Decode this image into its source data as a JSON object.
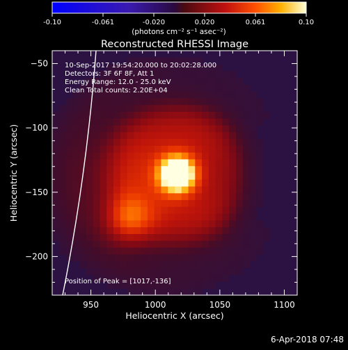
{
  "colorbar": {
    "ticks": [
      "-0.10",
      "-0.061",
      "-0.020",
      "0.020",
      "0.061",
      "0.10"
    ],
    "unit_label": "(photons cm⁻² s⁻¹ asec⁻²)",
    "range": [
      -0.1,
      0.1
    ]
  },
  "chart_data": {
    "type": "heatmap",
    "title": "Reconstructed RHESSI Image",
    "xlabel": "Heliocentric X (arcsec)",
    "ylabel": "Heliocentric Y (arcsec)",
    "xlim": [
      920,
      1110
    ],
    "ylim": [
      -230,
      -40
    ],
    "x_ticks": [
      950,
      1000,
      1050,
      1100
    ],
    "x_tick_labels": [
      "950",
      "1000",
      "1050",
      "1100"
    ],
    "y_ticks": [
      -50,
      -100,
      -150,
      -200
    ],
    "y_tick_labels": [
      "−50",
      "−100",
      "−150",
      "−200"
    ],
    "annotations": [
      "10-Sep-2017 19:54:20.000 to 20:02:28.000",
      "Detectors: 3F 6F 8F, Att 1",
      "Energy Range: 12.0 - 25.0 keV",
      "Clean    Total counts: 2.20E+04"
    ],
    "peak_label": "Position of Peak = [1017,-136]",
    "peak": [
      1017,
      -136
    ],
    "sources": [
      {
        "x": 1017,
        "y": -136,
        "peak": 0.1
      },
      {
        "x": 978,
        "y": -172,
        "peak": 0.055
      }
    ]
  },
  "timestamp": "6-Apr-2018 07:48"
}
